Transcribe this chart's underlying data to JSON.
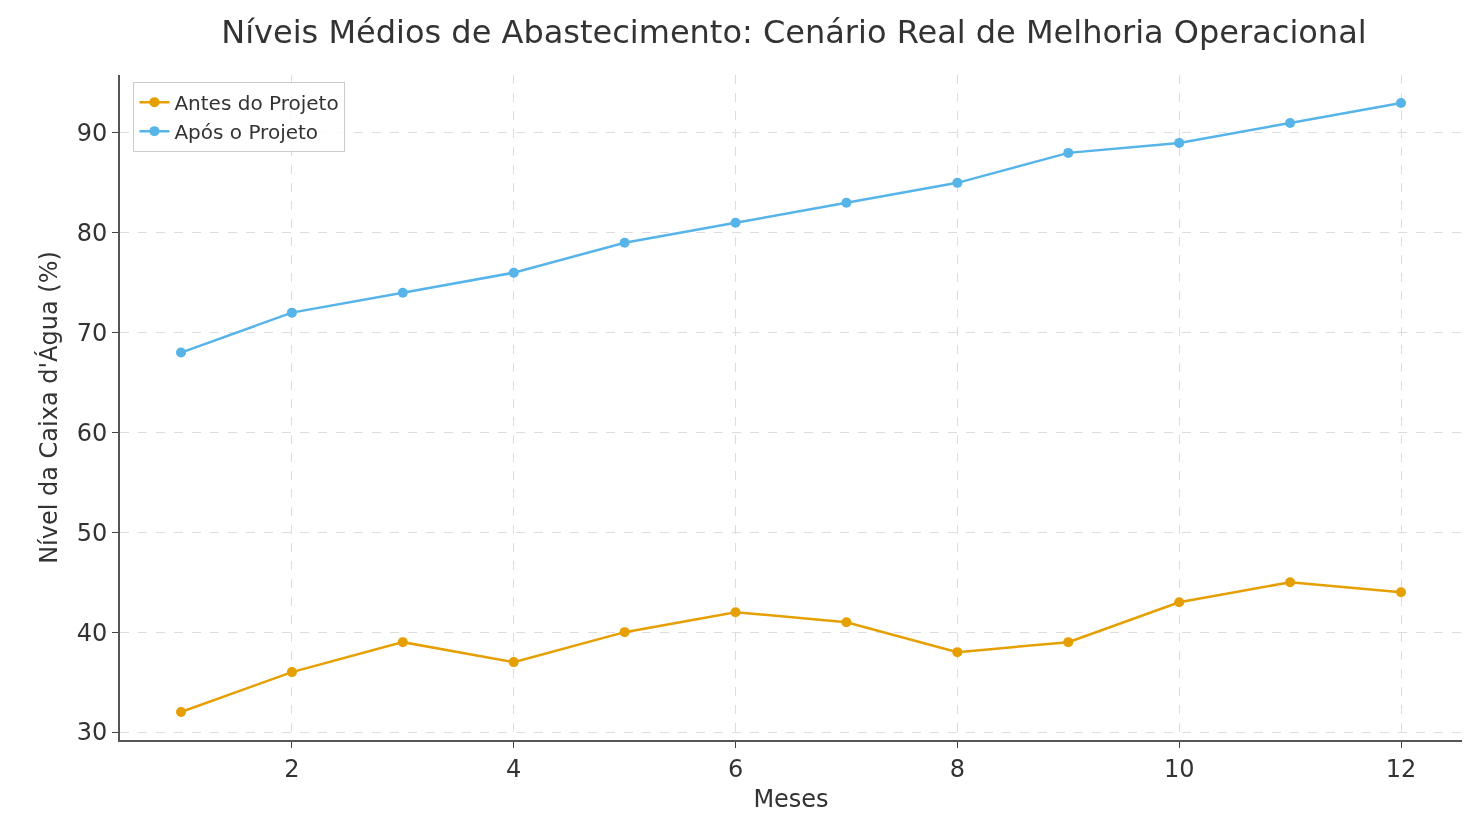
{
  "chart_data": {
    "type": "line",
    "title": "Níveis Médios de Abastecimento: Cenário Real de Melhoria Operacional",
    "xlabel": "Meses",
    "ylabel": "Nível da Caixa d'Água (%)",
    "x": [
      1,
      2,
      3,
      4,
      5,
      6,
      7,
      8,
      9,
      10,
      11,
      12
    ],
    "series": [
      {
        "name": "Antes do Projeto",
        "color": "#e69f00",
        "values": [
          32,
          36,
          39,
          37,
          40,
          42,
          41,
          38,
          39,
          43,
          45,
          44
        ]
      },
      {
        "name": "Após o Projeto",
        "color": "#56b4e9",
        "values": [
          68,
          72,
          74,
          76,
          79,
          81,
          83,
          85,
          88,
          89,
          91,
          93
        ]
      }
    ],
    "xlim": [
      0.45,
      12.55
    ],
    "xticks": [
      2,
      4,
      6,
      8,
      10,
      12
    ],
    "ylim": [
      29.2,
      95.8
    ],
    "yticks": [
      30,
      40,
      50,
      60,
      70,
      80,
      90
    ],
    "grid": true,
    "legend": "top left",
    "marker": "circle",
    "line_style": "solid"
  }
}
